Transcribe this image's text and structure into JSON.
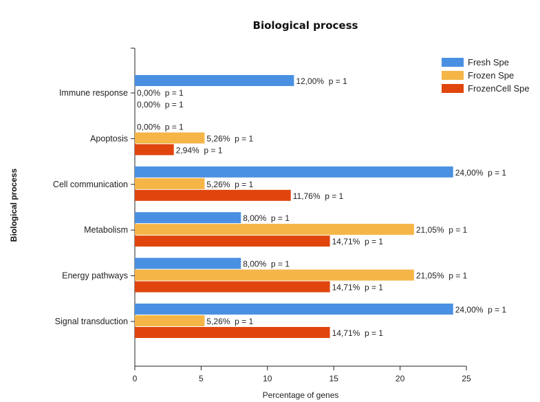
{
  "chart_data": {
    "type": "bar",
    "orientation": "horizontal",
    "title": "Biological process",
    "xlabel": "Percentage of genes",
    "ylabel": "Biological process",
    "xlim": [
      0,
      25
    ],
    "xticks": [
      "0",
      "5",
      "10",
      "15",
      "20",
      "25"
    ],
    "categories": [
      "Immune response",
      "Apoptosis",
      "Cell communication",
      "Metabolism",
      "Energy pathways",
      "Signal transduction"
    ],
    "series": [
      {
        "name": "Fresh Spe",
        "color": "#4a90e2",
        "values": [
          12.0,
          0.0,
          24.0,
          8.0,
          8.0,
          24.0
        ],
        "labels": [
          "12,00%  p = 1",
          "0,00%  p = 1",
          "24,00%  p = 1",
          "8,00%  p = 1",
          "8,00%  p = 1",
          "24,00%  p = 1"
        ]
      },
      {
        "name": "Frozen Spe",
        "color": "#f5b547",
        "values": [
          0.0,
          5.26,
          5.26,
          21.05,
          21.05,
          5.26
        ],
        "labels": [
          "0,00%  p = 1",
          "5,26%  p = 1",
          "5,26%  p = 1",
          "21,05%  p = 1",
          "21,05%  p = 1",
          "5,26%  p = 1"
        ]
      },
      {
        "name": "FrozenCell Spe",
        "color": "#e0450e",
        "values": [
          0.0,
          2.94,
          11.76,
          14.71,
          14.71,
          14.71
        ],
        "labels": [
          "0,00%  p = 1",
          "2,94%  p = 1",
          "11,76%  p = 1",
          "14,71%  p = 1",
          "14,71%  p = 1",
          "14,71%  p = 1"
        ]
      }
    ],
    "legend_position": "top-right"
  }
}
